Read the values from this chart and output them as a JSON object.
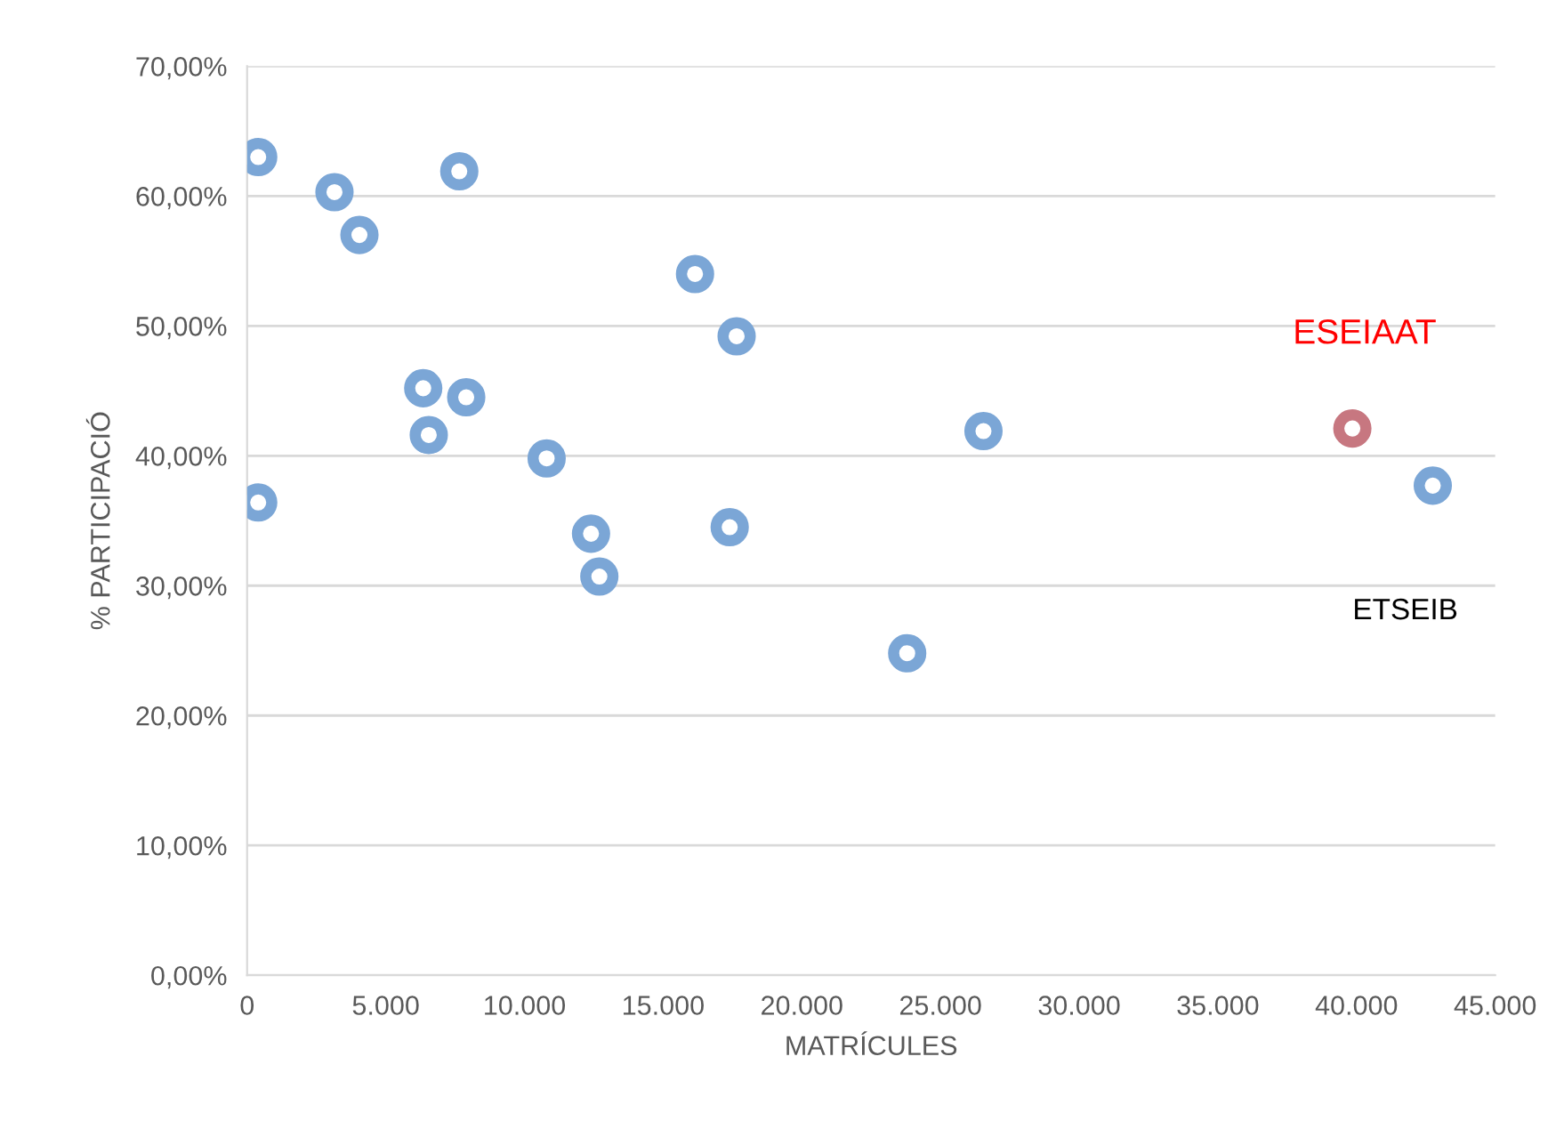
{
  "chart_data": {
    "type": "scatter",
    "xlabel": "MATRÍCULES",
    "ylabel": "% PARTICIPACIÓ",
    "xlim": [
      0,
      45000
    ],
    "ylim": [
      0,
      70
    ],
    "xticks": [
      {
        "value": 0,
        "label": "0"
      },
      {
        "value": 5000,
        "label": "5.000"
      },
      {
        "value": 10000,
        "label": "10.000"
      },
      {
        "value": 15000,
        "label": "15.000"
      },
      {
        "value": 20000,
        "label": "20.000"
      },
      {
        "value": 25000,
        "label": "25.000"
      },
      {
        "value": 30000,
        "label": "30.000"
      },
      {
        "value": 35000,
        "label": "35.000"
      },
      {
        "value": 40000,
        "label": "40.000"
      },
      {
        "value": 45000,
        "label": "45.000"
      }
    ],
    "yticks": [
      {
        "value": 0,
        "label": "0,00%"
      },
      {
        "value": 10,
        "label": "10,00%"
      },
      {
        "value": 20,
        "label": "20,00%"
      },
      {
        "value": 30,
        "label": "30,00%"
      },
      {
        "value": 40,
        "label": "40,00%"
      },
      {
        "value": 50,
        "label": "50,00%"
      },
      {
        "value": 60,
        "label": "60,00%"
      },
      {
        "value": 70,
        "label": "70,00%"
      }
    ],
    "grid": "y",
    "marker": "circle",
    "legend": false,
    "series": [
      {
        "color": "#7ba6d6",
        "x": [
          400,
          3150,
          4050,
          7650,
          16150,
          17650,
          6350,
          7900,
          6550,
          10800,
          26550,
          42750,
          400,
          12400,
          17400,
          12700,
          23800
        ],
        "values": [
          63.0,
          60.3,
          57.0,
          61.9,
          54.0,
          49.2,
          45.2,
          44.5,
          41.6,
          39.8,
          41.9,
          37.7,
          36.4,
          34.0,
          34.5,
          30.7,
          24.8
        ]
      },
      {
        "color": "#c77780",
        "x": [
          39850
        ],
        "values": [
          42.1
        ]
      }
    ],
    "annotations": [
      {
        "text": "ESEIAAT",
        "x": 39850,
        "y": 42.1
      },
      "ETSEIB"
    ]
  }
}
